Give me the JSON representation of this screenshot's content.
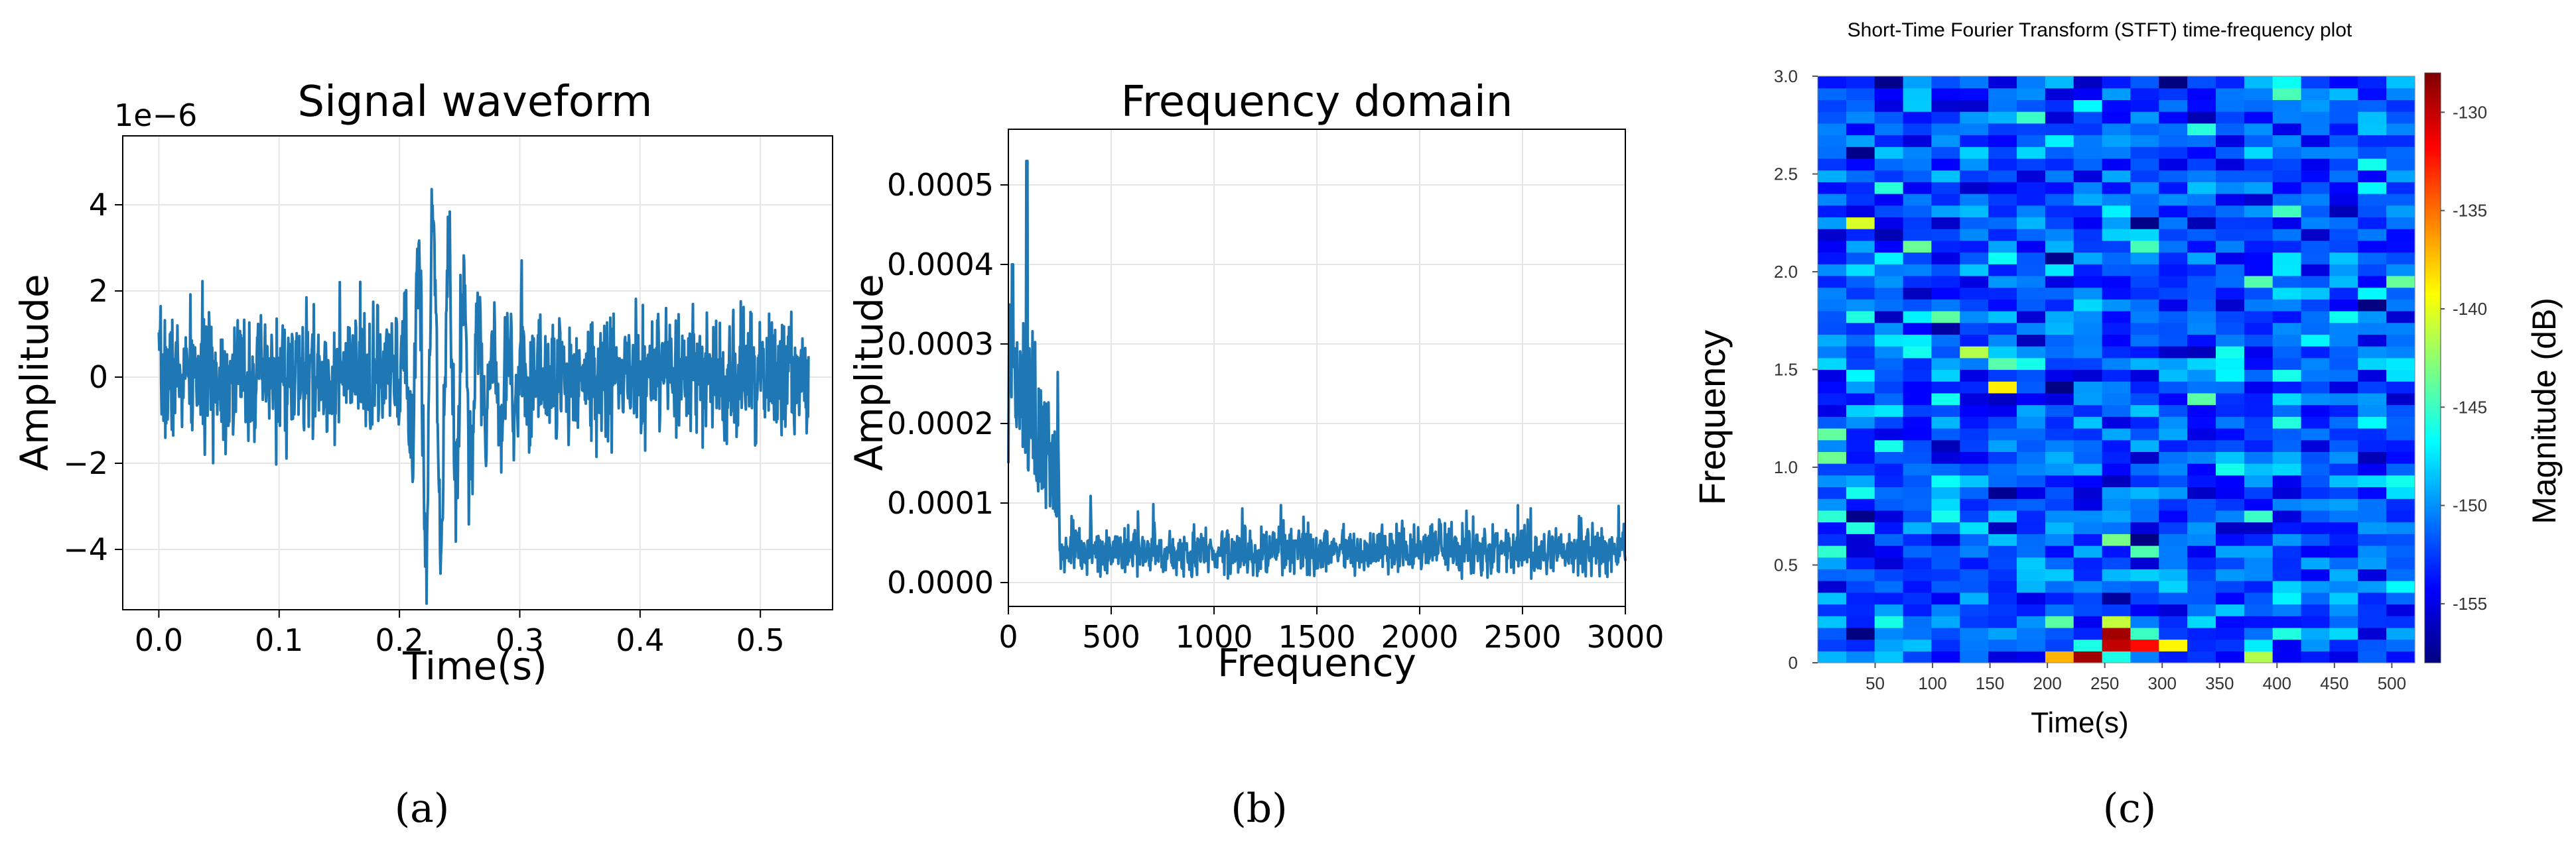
{
  "chart_data": [
    {
      "type": "line",
      "title": "Signal waveform",
      "xlabel": "Time(s)",
      "ylabel": "Amplitude",
      "y_offset_label": "1e−6",
      "xlim": [
        -0.03,
        0.56
      ],
      "ylim": [
        -5.4,
        5.6
      ],
      "x_ticks": [
        0.0,
        0.1,
        0.2,
        0.3,
        0.4,
        0.5
      ],
      "x_tick_labels": [
        "0.0",
        "0.1",
        "0.2",
        "0.3",
        "0.4",
        "0.5"
      ],
      "y_ticks": [
        -4,
        -2,
        0,
        2,
        4
      ],
      "y_tick_labels": [
        "−4",
        "−2",
        "0",
        "2",
        "4"
      ],
      "grid": true,
      "line_color": "#1f77b4",
      "noise_amplitude": 1.3,
      "event": {
        "start": 0.2,
        "peak": 0.225,
        "end": 0.31,
        "max_amplitude": 5.2
      },
      "x_end": 0.54,
      "caption": "(a)"
    },
    {
      "type": "line",
      "title": "Frequency domain",
      "xlabel": "Frequency",
      "ylabel": "Amplitude",
      "xlim": [
        0,
        3000
      ],
      "ylim": [
        -3e-05,
        0.00057
      ],
      "x_ticks": [
        0,
        500,
        1000,
        1500,
        2000,
        2500,
        3000
      ],
      "x_tick_labels": [
        "0",
        "500",
        "1000",
        "1500",
        "2000",
        "2500",
        "3000"
      ],
      "y_ticks": [
        0.0,
        0.0001,
        0.0002,
        0.0003,
        0.0004,
        0.0005
      ],
      "y_tick_labels": [
        "0.0000",
        "0.0001",
        "0.0002",
        "0.0003",
        "0.0004",
        "0.0005"
      ],
      "grid": true,
      "line_color": "#1f77b4",
      "peak": {
        "x": 90,
        "y": 0.00053
      },
      "noise_floor": 4e-05,
      "caption": "(b)"
    },
    {
      "type": "heatmap",
      "title": "Short-Time Fourier Transform (STFT) time-frequency plot",
      "xlabel": "Time(s)",
      "ylabel": "Frequency",
      "colorbar_label": "Magnitude (dB)",
      "xlim": [
        0,
        520
      ],
      "ylim": [
        0,
        3.0
      ],
      "x_ticks": [
        50,
        100,
        150,
        200,
        250,
        300,
        350,
        400,
        450,
        500
      ],
      "x_tick_labels": [
        "50",
        "100",
        "150",
        "200",
        "250",
        "300",
        "350",
        "400",
        "450",
        "500"
      ],
      "y_ticks": [
        0,
        0.5,
        1.0,
        1.5,
        2.0,
        2.5,
        3.0
      ],
      "y_tick_labels": [
        "0",
        "0.5",
        "1.0",
        "1.5",
        "2.0",
        "2.5",
        "3.0"
      ],
      "colorbar_range": [
        -158,
        -128
      ],
      "colorbar_ticks": [
        -130,
        -135,
        -140,
        -145,
        -150,
        -155
      ],
      "colorbar_tick_labels": [
        "-130",
        "-135",
        "-140",
        "-145",
        "-150",
        "-155"
      ],
      "colormap": "jet",
      "background_level": -152,
      "hot_cells": [
        {
          "t": 200,
          "f": 0.03,
          "db": -137
        },
        {
          "t": 225,
          "f": 0.03,
          "db": -129
        },
        {
          "t": 250,
          "f": 0.03,
          "db": -146
        },
        {
          "t": 225,
          "f": 0.09,
          "db": -146
        },
        {
          "t": 250,
          "f": 0.09,
          "db": -130
        },
        {
          "t": 275,
          "f": 0.09,
          "db": -132
        },
        {
          "t": 300,
          "f": 0.09,
          "db": -139
        },
        {
          "t": 250,
          "f": 0.15,
          "db": -129
        },
        {
          "t": 275,
          "f": 0.15,
          "db": -145
        },
        {
          "t": 250,
          "f": 0.21,
          "db": -141
        }
      ],
      "caption": "(c)"
    }
  ]
}
